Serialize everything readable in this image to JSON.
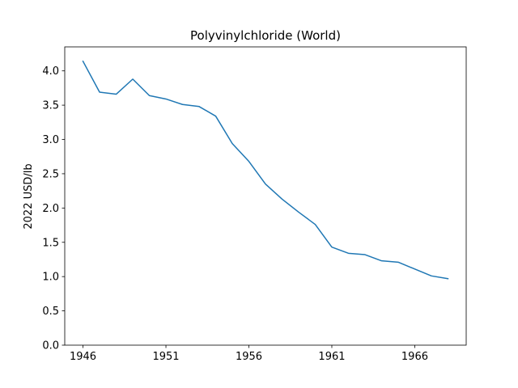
{
  "chart_data": {
    "type": "line",
    "title": "Polyvinylchloride (World)",
    "xlabel": "",
    "ylabel": "2022 USD/lb",
    "xlim": [
      1944.9,
      1969.1
    ],
    "ylim": [
      0.0,
      4.35
    ],
    "xticks": [
      1946,
      1951,
      1956,
      1961,
      1966
    ],
    "yticks": [
      0.0,
      0.5,
      1.0,
      1.5,
      2.0,
      2.5,
      3.0,
      3.5,
      4.0
    ],
    "grid": false,
    "series": [
      {
        "color": "#1f77b4",
        "x": [
          1946,
          1947,
          1948,
          1949,
          1950,
          1951,
          1952,
          1953,
          1954,
          1955,
          1956,
          1957,
          1958,
          1959,
          1960,
          1961,
          1962,
          1963,
          1964,
          1965,
          1966,
          1967,
          1968
        ],
        "y": [
          4.14,
          3.69,
          3.66,
          3.88,
          3.64,
          3.59,
          3.51,
          3.48,
          3.34,
          2.94,
          2.68,
          2.35,
          2.13,
          1.94,
          1.76,
          1.43,
          1.34,
          1.32,
          1.23,
          1.21,
          1.11,
          1.01,
          0.97
        ]
      }
    ]
  }
}
